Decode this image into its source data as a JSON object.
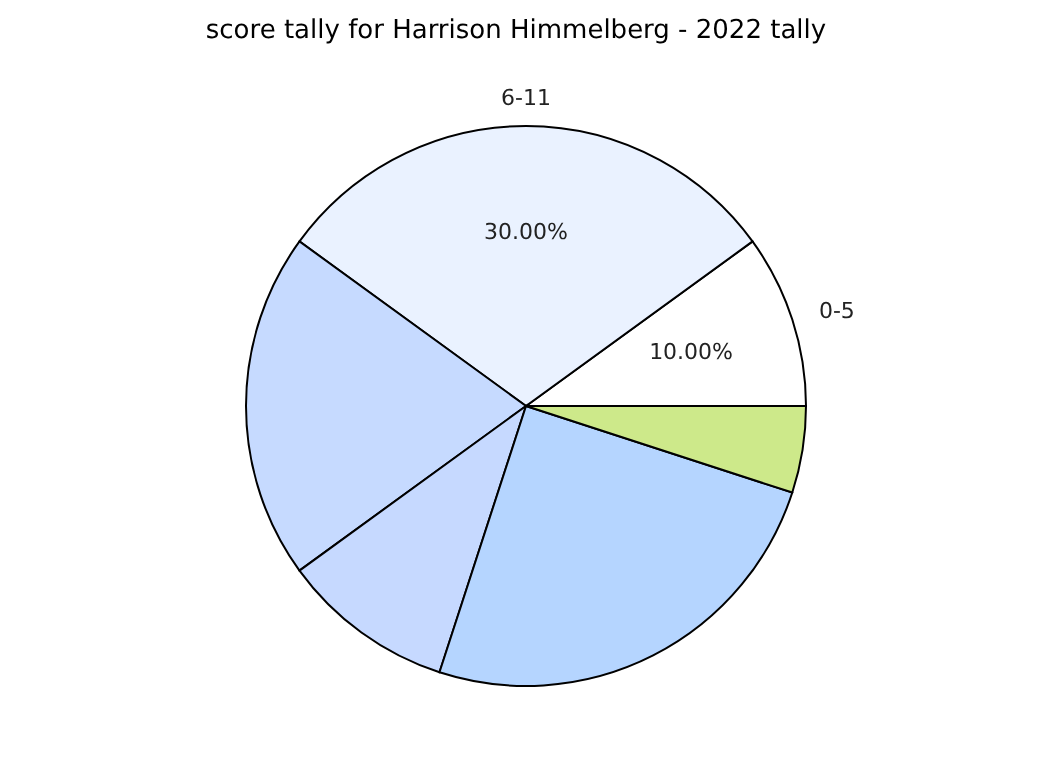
{
  "chart_data": {
    "type": "pie",
    "title": "score tally for Harrison Himmelberg - 2022 tally",
    "categories": [
      "0-5",
      "6-11",
      null,
      null,
      null,
      null
    ],
    "values": [
      10,
      30,
      20,
      10,
      25,
      5
    ],
    "value_labels": [
      "10.00%",
      "30.00%",
      null,
      null,
      null,
      null
    ],
    "colors": [
      "#ffffff",
      "#eaf2ff",
      "#c6daff",
      "#c6d9ff",
      "#b5d5ff",
      "#cde98a"
    ],
    "legend": false
  }
}
